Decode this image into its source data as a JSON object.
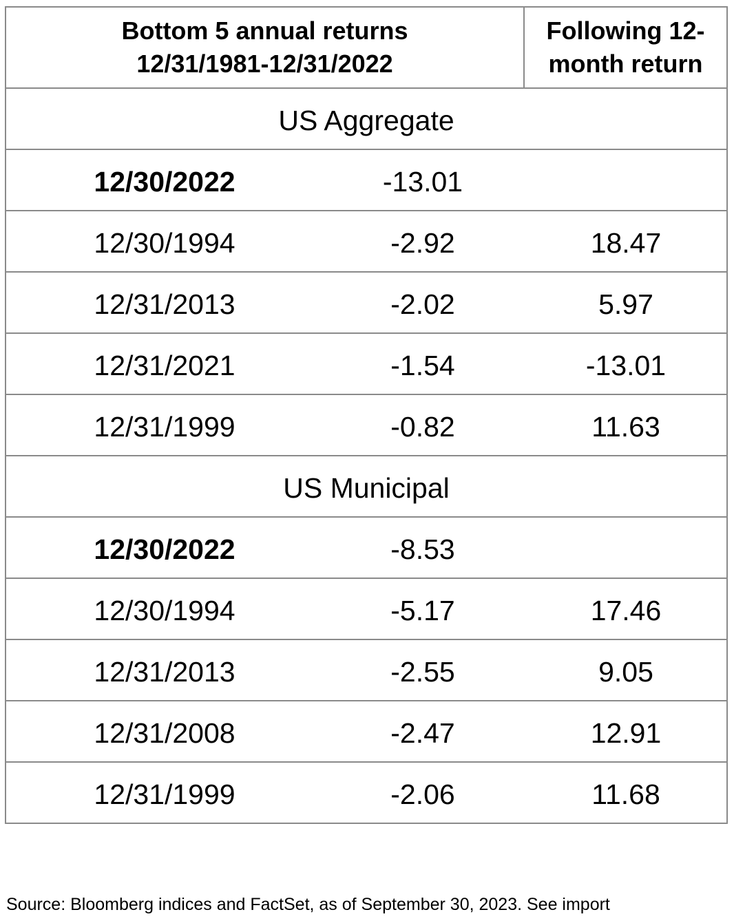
{
  "header": {
    "columns": [
      {
        "lines": [
          "Bottom 5 annual returns",
          "12/31/1981-12/31/2022"
        ]
      },
      {
        "lines": [
          "Following 12-",
          "month return"
        ]
      }
    ]
  },
  "sections": [
    {
      "title": "US Aggregate",
      "rows": [
        {
          "date": "12/30/2022",
          "return": "-13.01",
          "bold": true
        },
        {
          "date": "12/30/1994",
          "return": "-2.92",
          "following": "18.47"
        },
        {
          "date": "12/31/2013",
          "return": "-2.02",
          "following": "5.97"
        },
        {
          "date": "12/31/2021",
          "return": "-1.54",
          "following": "-13.01"
        },
        {
          "date": "12/31/1999",
          "return": "-0.82",
          "following": "11.63"
        }
      ]
    },
    {
      "title": "US Municipal",
      "rows": [
        {
          "date": "12/30/2022",
          "return": "-8.53",
          "bold": true
        },
        {
          "date": "12/30/1994",
          "return": "-5.17",
          "following": "17.46"
        },
        {
          "date": "12/31/2013",
          "return": "-2.55",
          "following": "9.05"
        },
        {
          "date": "12/31/2008",
          "return": "-2.47",
          "following": "12.91"
        },
        {
          "date": "12/31/1999",
          "return": "-2.06",
          "following": "11.68"
        }
      ]
    }
  ],
  "source": "Source: Bloomberg indices and FactSet, as of September 30, 2023. See import"
}
